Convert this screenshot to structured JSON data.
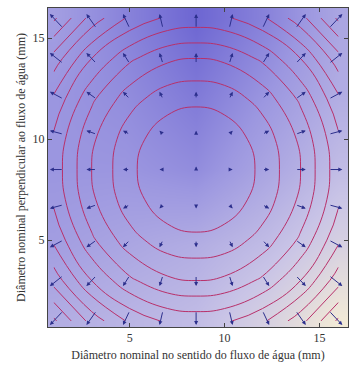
{
  "chart_data": {
    "type": "streamdensity",
    "x_label": "Diâmetro nominal no sentido do fluxo de água (mm)",
    "y_label": "Diâmetro nominal perpendicular ao fluxo de água (mm)",
    "xlim": [
      0.7,
      16.5
    ],
    "ylim": [
      0.7,
      16.5
    ],
    "xticks": [
      5,
      10,
      15
    ],
    "yticks": [
      5,
      10,
      15
    ],
    "contour": {
      "x": [
        1,
        3,
        5,
        7,
        8.5,
        10,
        12,
        14,
        16
      ],
      "y": [
        1,
        3,
        5,
        7,
        8.5,
        10,
        12,
        14,
        16
      ],
      "z": [
        [
          112,
          86,
          68,
          58,
          56,
          58,
          68,
          86,
          112
        ],
        [
          86,
          60,
          42,
          32,
          30,
          32,
          42,
          60,
          86
        ],
        [
          68,
          42,
          24,
          14,
          12,
          14,
          24,
          42,
          68
        ],
        [
          58,
          32,
          14,
          4,
          2,
          4,
          14,
          32,
          58
        ],
        [
          56,
          30,
          12,
          2,
          0,
          2,
          12,
          30,
          56
        ],
        [
          58,
          32,
          14,
          4,
          2,
          4,
          14,
          32,
          58
        ],
        [
          68,
          42,
          24,
          14,
          12,
          14,
          24,
          42,
          68
        ],
        [
          86,
          60,
          42,
          32,
          30,
          32,
          42,
          60,
          86
        ],
        [
          112,
          86,
          68,
          58,
          56,
          58,
          68,
          86,
          112
        ]
      ]
    },
    "density": {
      "x": [
        1,
        4.75,
        8.5,
        12.25,
        16
      ],
      "y": [
        1,
        4.75,
        8.5,
        12.25,
        16
      ],
      "z": [
        [
          0.55,
          0.5,
          0.45,
          0.3,
          0.1
        ],
        [
          0.65,
          0.6,
          0.55,
          0.45,
          0.3
        ],
        [
          0.7,
          0.7,
          0.75,
          0.6,
          0.45
        ],
        [
          0.7,
          0.75,
          0.85,
          0.7,
          0.55
        ],
        [
          0.65,
          0.8,
          0.95,
          0.8,
          0.6
        ]
      ]
    },
    "arrows": {
      "x": [
        1.5,
        3.25,
        5,
        6.75,
        8.5,
        10.25,
        12,
        13.75,
        15.5
      ],
      "y": [
        1.5,
        3.25,
        5,
        6.75,
        8.5,
        10.25,
        12,
        13.75,
        15.5
      ],
      "u": [
        [
          -0.7,
          -0.525,
          -0.35,
          -0.175,
          0,
          0.175,
          0.35,
          0.525,
          0.7
        ],
        [
          -0.7,
          -0.525,
          -0.35,
          -0.175,
          0,
          0.175,
          0.35,
          0.525,
          0.7
        ],
        [
          -0.7,
          -0.525,
          -0.35,
          -0.175,
          0,
          0.175,
          0.35,
          0.525,
          0.7
        ],
        [
          -0.7,
          -0.525,
          -0.35,
          -0.175,
          0,
          0.175,
          0.35,
          0.525,
          0.7
        ],
        [
          -0.7,
          -0.525,
          -0.35,
          -0.175,
          0,
          0.175,
          0.35,
          0.525,
          0.7
        ],
        [
          -0.7,
          -0.525,
          -0.35,
          -0.175,
          0,
          0.175,
          0.35,
          0.525,
          0.7
        ],
        [
          -0.7,
          -0.525,
          -0.35,
          -0.175,
          0,
          0.175,
          0.35,
          0.525,
          0.7
        ],
        [
          -0.7,
          -0.525,
          -0.35,
          -0.175,
          0,
          0.175,
          0.35,
          0.525,
          0.7
        ],
        [
          -0.7,
          -0.525,
          -0.35,
          -0.175,
          0,
          0.175,
          0.35,
          0.525,
          0.7
        ]
      ],
      "v": [
        [
          -0.7,
          -0.7,
          -0.7,
          -0.7,
          -0.7,
          -0.7,
          -0.7,
          -0.7,
          -0.7
        ],
        [
          -0.525,
          -0.525,
          -0.525,
          -0.525,
          -0.525,
          -0.525,
          -0.525,
          -0.525,
          -0.525
        ],
        [
          -0.35,
          -0.35,
          -0.35,
          -0.35,
          -0.35,
          -0.35,
          -0.35,
          -0.35,
          -0.35
        ],
        [
          -0.175,
          -0.175,
          -0.175,
          -0.175,
          -0.175,
          -0.175,
          -0.175,
          -0.175,
          -0.175
        ],
        [
          0,
          0,
          0,
          0,
          0.15,
          0,
          0,
          0,
          0
        ],
        [
          0.175,
          0.175,
          0.175,
          0.175,
          0.175,
          0.175,
          0.175,
          0.175,
          0.175
        ],
        [
          0.35,
          0.35,
          0.35,
          0.35,
          0.35,
          0.35,
          0.35,
          0.35,
          0.35
        ],
        [
          0.525,
          0.525,
          0.525,
          0.525,
          0.525,
          0.525,
          0.525,
          0.525,
          0.525
        ],
        [
          0.7,
          0.7,
          0.7,
          0.7,
          0.7,
          0.7,
          0.7,
          0.7,
          0.7
        ]
      ]
    }
  }
}
